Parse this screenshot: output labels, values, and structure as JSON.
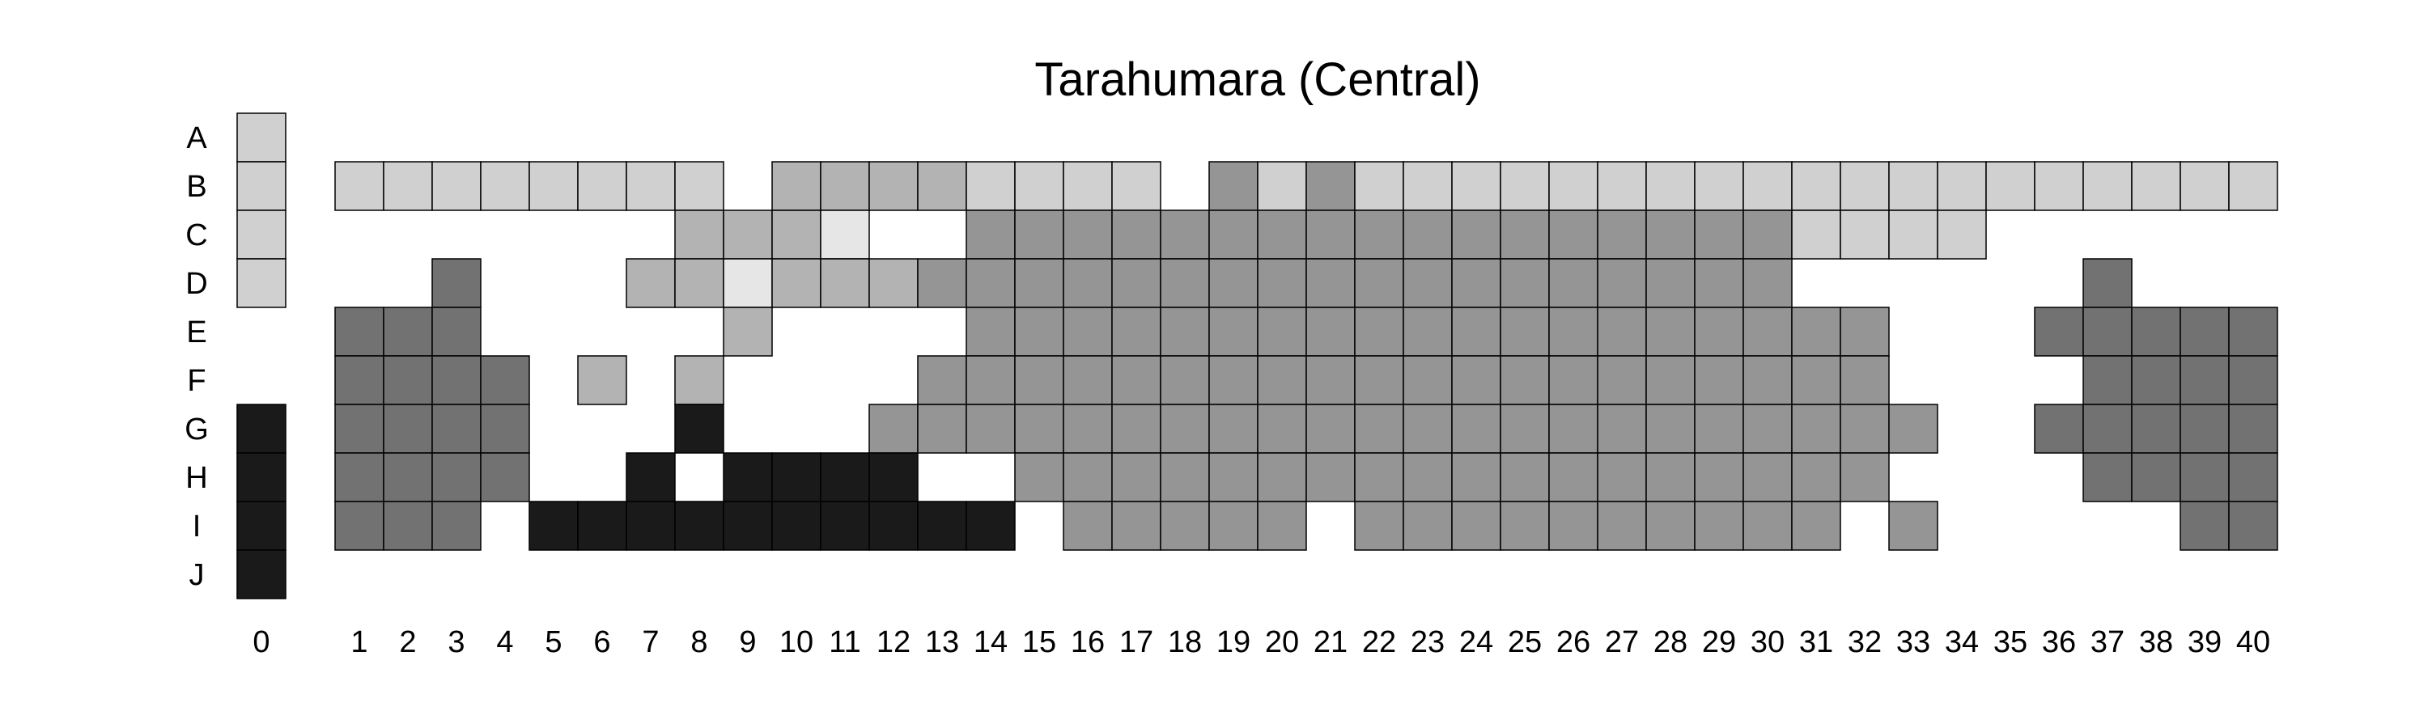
{
  "chart_data": {
    "type": "heatmap",
    "title": "Tarahumara (Central)",
    "rows": [
      "A",
      "B",
      "C",
      "D",
      "E",
      "F",
      "G",
      "H",
      "I",
      "J"
    ],
    "columns": [
      "0",
      "1",
      "2",
      "3",
      "4",
      "5",
      "6",
      "7",
      "8",
      "9",
      "10",
      "11",
      "12",
      "13",
      "14",
      "15",
      "16",
      "17",
      "18",
      "19",
      "20",
      "21",
      "22",
      "23",
      "24",
      "25",
      "26",
      "27",
      "28",
      "29",
      "30",
      "31",
      "32",
      "33",
      "34",
      "35",
      "36",
      "37",
      "38",
      "39",
      "40"
    ],
    "shade_scale": {
      "1": "#e6e6e6",
      "2": "#d0d0d0",
      "3": "#b3b3b3",
      "4": "#959595",
      "5": "#727272",
      "6": "#1a1a1a"
    },
    "grid": [
      [
        2,
        0,
        0,
        0,
        0,
        0,
        0,
        0,
        0,
        0,
        0,
        0,
        0,
        0,
        0,
        0,
        0,
        0,
        0,
        0,
        0,
        0,
        0,
        0,
        0,
        0,
        0,
        0,
        0,
        0,
        0,
        0,
        0,
        0,
        0,
        0,
        0,
        0,
        0,
        0,
        0
      ],
      [
        2,
        2,
        2,
        2,
        2,
        2,
        2,
        2,
        2,
        0,
        3,
        3,
        3,
        3,
        2,
        2,
        2,
        2,
        0,
        4,
        2,
        4,
        2,
        2,
        2,
        2,
        2,
        2,
        2,
        2,
        2,
        2,
        2,
        2,
        2,
        2,
        2,
        2,
        2,
        2,
        2
      ],
      [
        2,
        0,
        0,
        0,
        0,
        0,
        0,
        0,
        3,
        3,
        3,
        1,
        0,
        0,
        4,
        4,
        4,
        4,
        4,
        4,
        4,
        4,
        4,
        4,
        4,
        4,
        4,
        4,
        4,
        4,
        4,
        2,
        2,
        2,
        2,
        0,
        0,
        0,
        0,
        0,
        0
      ],
      [
        2,
        0,
        0,
        5,
        0,
        0,
        0,
        3,
        3,
        1,
        3,
        3,
        3,
        4,
        4,
        4,
        4,
        4,
        4,
        4,
        4,
        4,
        4,
        4,
        4,
        4,
        4,
        4,
        4,
        4,
        4,
        0,
        0,
        0,
        0,
        0,
        0,
        5,
        0,
        0,
        0
      ],
      [
        0,
        5,
        5,
        5,
        0,
        0,
        0,
        0,
        0,
        3,
        0,
        0,
        0,
        0,
        4,
        4,
        4,
        4,
        4,
        4,
        4,
        4,
        4,
        4,
        4,
        4,
        4,
        4,
        4,
        4,
        4,
        4,
        4,
        0,
        0,
        0,
        5,
        5,
        5,
        5,
        5
      ],
      [
        0,
        5,
        5,
        5,
        5,
        0,
        3,
        0,
        3,
        0,
        0,
        0,
        0,
        4,
        4,
        4,
        4,
        4,
        4,
        4,
        4,
        4,
        4,
        4,
        4,
        4,
        4,
        4,
        4,
        4,
        4,
        4,
        4,
        0,
        0,
        0,
        0,
        5,
        5,
        5,
        5
      ],
      [
        6,
        5,
        5,
        5,
        5,
        0,
        0,
        0,
        6,
        0,
        0,
        0,
        4,
        4,
        4,
        4,
        4,
        4,
        4,
        4,
        4,
        4,
        4,
        4,
        4,
        4,
        4,
        4,
        4,
        4,
        4,
        4,
        4,
        4,
        0,
        0,
        5,
        5,
        5,
        5,
        5
      ],
      [
        6,
        5,
        5,
        5,
        5,
        0,
        0,
        6,
        0,
        6,
        6,
        6,
        6,
        0,
        0,
        4,
        4,
        4,
        4,
        4,
        4,
        4,
        4,
        4,
        4,
        4,
        4,
        4,
        4,
        4,
        4,
        4,
        4,
        0,
        0,
        0,
        0,
        5,
        5,
        5,
        5
      ],
      [
        6,
        5,
        5,
        5,
        0,
        6,
        6,
        6,
        6,
        6,
        6,
        6,
        6,
        6,
        6,
        0,
        4,
        4,
        4,
        4,
        4,
        0,
        4,
        4,
        4,
        4,
        4,
        4,
        4,
        4,
        4,
        4,
        0,
        4,
        0,
        0,
        0,
        0,
        0,
        5,
        5
      ],
      [
        6,
        0,
        0,
        0,
        0,
        0,
        0,
        0,
        0,
        0,
        0,
        0,
        0,
        0,
        0,
        0,
        0,
        0,
        0,
        0,
        0,
        0,
        0,
        0,
        0,
        0,
        0,
        0,
        0,
        0,
        0,
        0,
        0,
        0,
        0,
        0,
        0,
        0,
        0,
        0,
        0
      ]
    ]
  }
}
